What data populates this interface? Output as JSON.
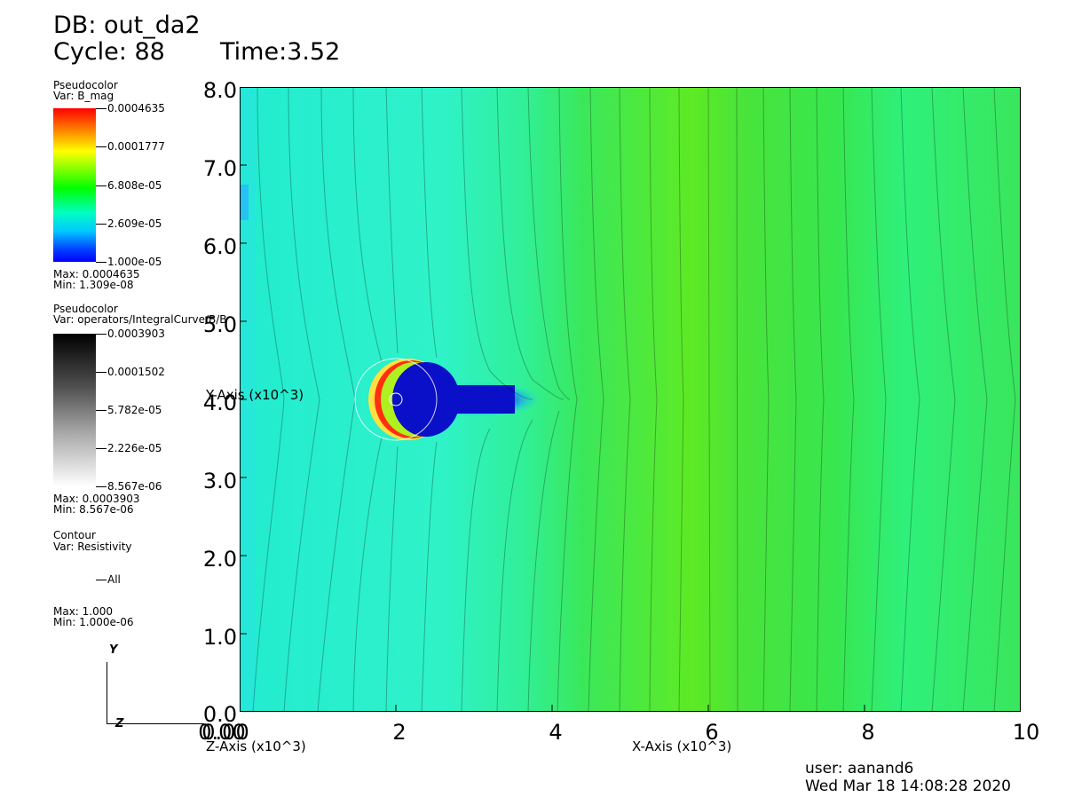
{
  "header": {
    "db": "DB: out_da2",
    "cycle": "Cycle: 88",
    "time": "Time:3.52"
  },
  "legend1": {
    "plot_type": "Pseudocolor",
    "var": "Var: B_mag",
    "ticks": [
      "0.0004635",
      "0.0001777",
      "6.808e-05",
      "2.609e-05",
      "1.000e-05"
    ],
    "max": "Max:  0.0004635",
    "min": "Min:  1.309e-08"
  },
  "legend2": {
    "plot_type": "Pseudocolor",
    "var": "Var: operators/IntegralCurve/B/B",
    "ticks": [
      "0.0003903",
      "0.0001502",
      "5.782e-05",
      "2.226e-05",
      "8.567e-06"
    ],
    "max": "Max:  0.0003903",
    "min": "Min:  8.567e-06"
  },
  "legend3": {
    "plot_type": "Contour",
    "var": "Var: Resistivity",
    "entry": "All",
    "max": "Max:  1.000",
    "min": "Min:  1.000e-06"
  },
  "triad": {
    "y": "Y",
    "z": "Z"
  },
  "axes": {
    "y_title": "Y-Axis (x10^3)",
    "x_title": "X-Axis (x10^3)",
    "z_title": "Z-Axis (x10^3)",
    "y_ticks": [
      "8.0",
      "7.0",
      "6.0",
      "5.0",
      "4.0",
      "3.0",
      "2.0",
      "1.0",
      "0.0"
    ],
    "x_ticks": [
      "0.00",
      "2",
      "4",
      "6",
      "8",
      "10"
    ],
    "z_tick": "0.00"
  },
  "colors": {
    "field_cyan": "#2ff2c8",
    "field_green": "#3fe63a",
    "field_lime": "#66ee1c",
    "core_blue": "#1010e0"
  },
  "footer": {
    "user": "user: aanand6",
    "date": "Wed Mar 18 14:08:28 2020"
  }
}
